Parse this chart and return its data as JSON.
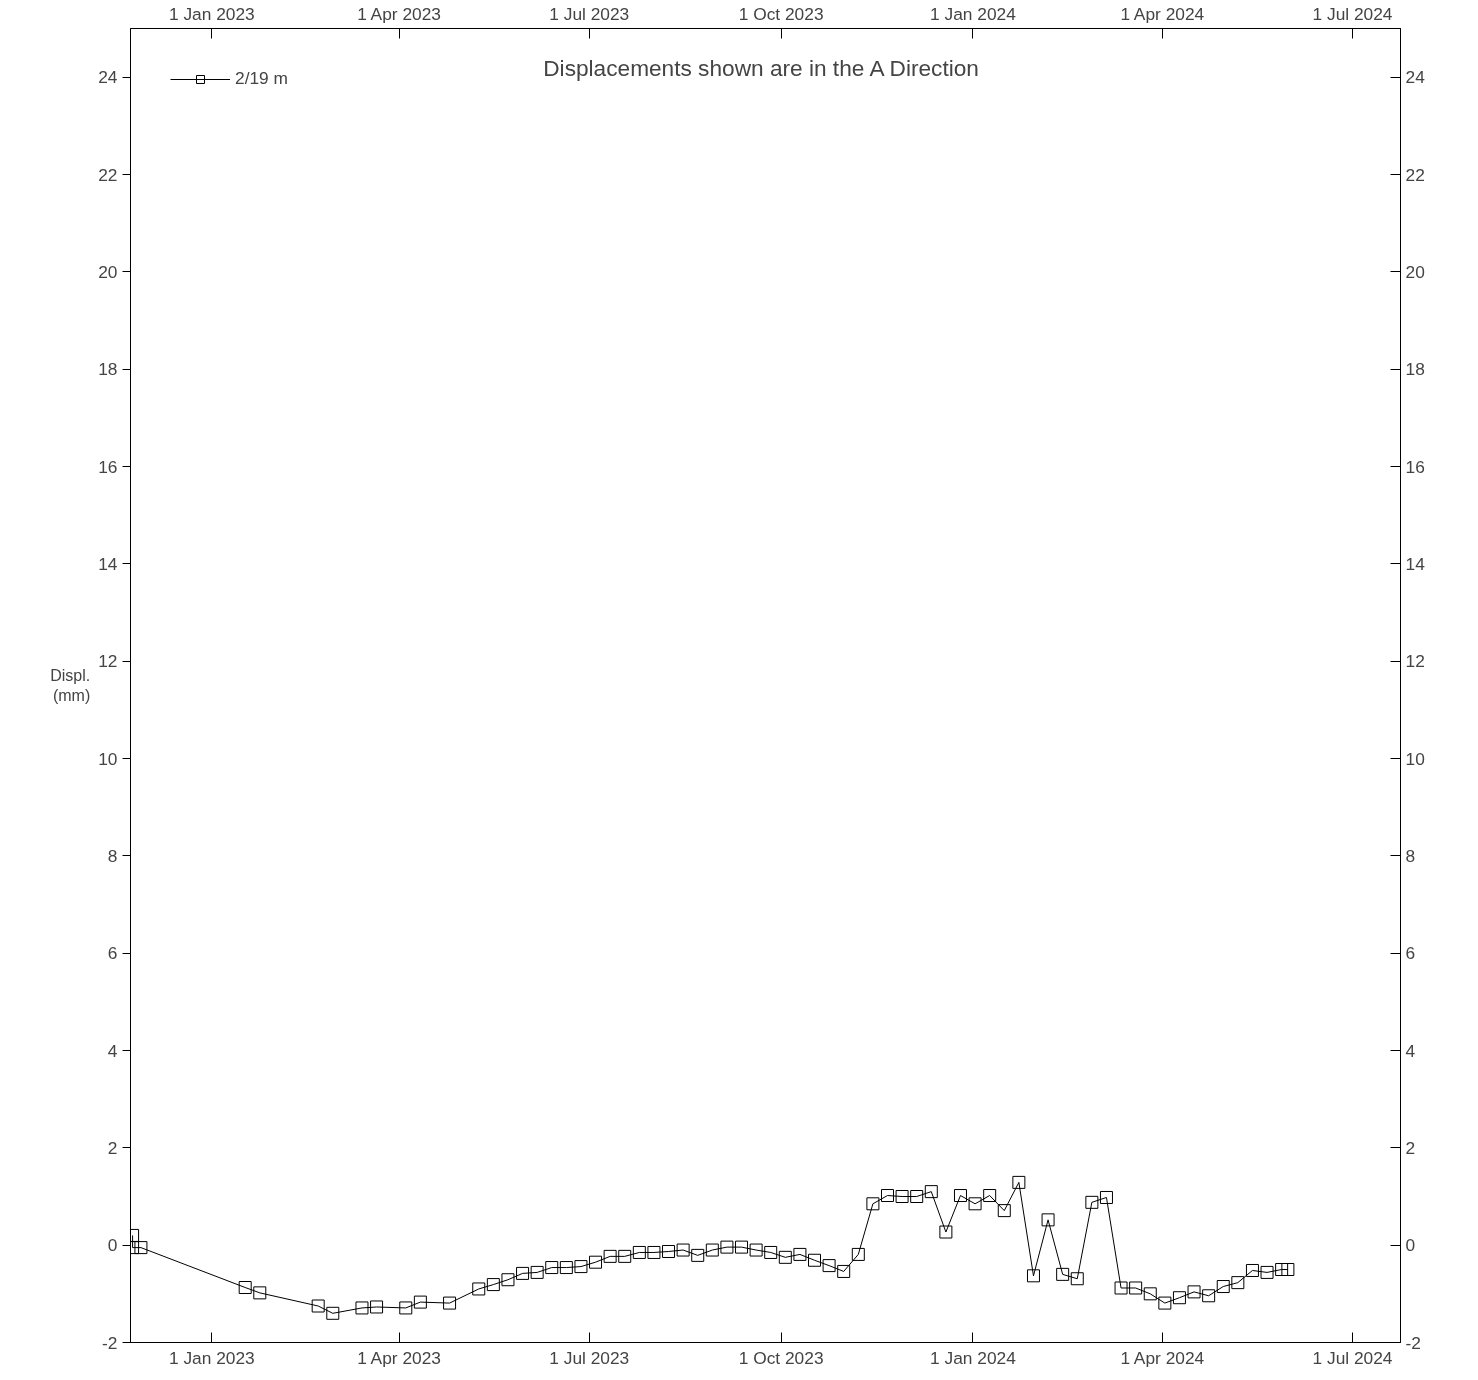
{
  "chart_data": {
    "type": "line",
    "title": "Displacements shown are in the  A Direction",
    "ylabel": "Displ.\n(mm)",
    "x": [
      "2022-11-24",
      "2022-11-24",
      "2022-11-28",
      "2023-01-17",
      "2023-01-24",
      "2023-02-21",
      "2023-02-28",
      "2023-03-14",
      "2023-03-21",
      "2023-04-04",
      "2023-04-11",
      "2023-04-25",
      "2023-05-09",
      "2023-05-16",
      "2023-05-23",
      "2023-05-30",
      "2023-06-06",
      "2023-06-13",
      "2023-06-20",
      "2023-06-27",
      "2023-07-04",
      "2023-07-11",
      "2023-07-18",
      "2023-07-25",
      "2023-08-01",
      "2023-08-08",
      "2023-08-15",
      "2023-08-22",
      "2023-08-29",
      "2023-09-05",
      "2023-09-12",
      "2023-09-19",
      "2023-09-26",
      "2023-10-03",
      "2023-10-10",
      "2023-10-17",
      "2023-10-24",
      "2023-10-31",
      "2023-11-07",
      "2023-11-14",
      "2023-11-21",
      "2023-11-28",
      "2023-12-05",
      "2023-12-12",
      "2023-12-19",
      "2023-12-26",
      "2024-01-02",
      "2024-01-09",
      "2024-01-16",
      "2024-01-23",
      "2024-01-30",
      "2024-02-06",
      "2024-02-13",
      "2024-02-20",
      "2024-02-27",
      "2024-03-05",
      "2024-03-12",
      "2024-03-19",
      "2024-03-26",
      "2024-04-02",
      "2024-04-09",
      "2024-04-16",
      "2024-04-23",
      "2024-04-30",
      "2024-05-07",
      "2024-05-14",
      "2024-05-21",
      "2024-05-28",
      "2024-05-31"
    ],
    "series": [
      {
        "name": "2/19 m",
        "color": "#000000",
        "values": [
          0.2,
          -0.05,
          -0.05,
          -0.87,
          -0.98,
          -1.25,
          -1.4,
          -1.29,
          -1.27,
          -1.29,
          -1.17,
          -1.19,
          -0.9,
          -0.81,
          -0.71,
          -0.58,
          -0.56,
          -0.46,
          -0.46,
          -0.44,
          -0.35,
          -0.23,
          -0.23,
          -0.15,
          -0.15,
          -0.13,
          -0.1,
          -0.21,
          -0.1,
          -0.04,
          -0.04,
          -0.1,
          -0.15,
          -0.25,
          -0.19,
          -0.31,
          -0.42,
          -0.54,
          -0.19,
          0.85,
          1.02,
          1.0,
          1.0,
          1.1,
          0.27,
          1.02,
          0.85,
          1.02,
          0.71,
          1.29,
          -0.63,
          0.52,
          -0.6,
          -0.69,
          0.88,
          0.98,
          -0.88,
          -0.88,
          -1.0,
          -1.19,
          -1.08,
          -0.96,
          -1.04,
          -0.85,
          -0.77,
          -0.52,
          -0.56,
          -0.5,
          -0.5
        ]
      }
    ],
    "xlim": [
      "2022-11-23",
      "2024-07-24"
    ],
    "xticks": [
      {
        "value": "2023-01-01",
        "label": "1 Jan 2023"
      },
      {
        "value": "2023-04-01",
        "label": "1 Apr 2023"
      },
      {
        "value": "2023-07-01",
        "label": "1 Jul 2023"
      },
      {
        "value": "2023-10-01",
        "label": "1 Oct 2023"
      },
      {
        "value": "2024-01-01",
        "label": "1 Jan 2024"
      },
      {
        "value": "2024-04-01",
        "label": "1 Apr 2024"
      },
      {
        "value": "2024-07-01",
        "label": "1 Jul 2024"
      }
    ],
    "x2lim": [
      "2022-11-23",
      "2024-07-24"
    ],
    "x2ticks": [
      {
        "value": "2023-01-01",
        "label": "1 Jan 2023"
      },
      {
        "value": "2023-04-01",
        "label": "1 Apr 2023"
      },
      {
        "value": "2023-07-01",
        "label": "1 Jul 2023"
      },
      {
        "value": "2023-10-01",
        "label": "1 Oct 2023"
      },
      {
        "value": "2024-01-01",
        "label": "1 Jan 2024"
      },
      {
        "value": "2024-04-01",
        "label": "1 Apr 2024"
      },
      {
        "value": "2024-07-01",
        "label": "1 Jul 2024"
      }
    ],
    "ylim": [
      -2,
      25
    ],
    "yticks": [
      -2,
      0,
      2,
      4,
      6,
      8,
      10,
      12,
      14,
      16,
      18,
      20,
      22,
      24
    ],
    "y2lim": [
      -2,
      25
    ],
    "y2ticks": [
      -2,
      0,
      2,
      4,
      6,
      8,
      10,
      12,
      14,
      16,
      18,
      20,
      22,
      24
    ],
    "legend": "top left",
    "marker": "square",
    "line_style": "solid"
  }
}
